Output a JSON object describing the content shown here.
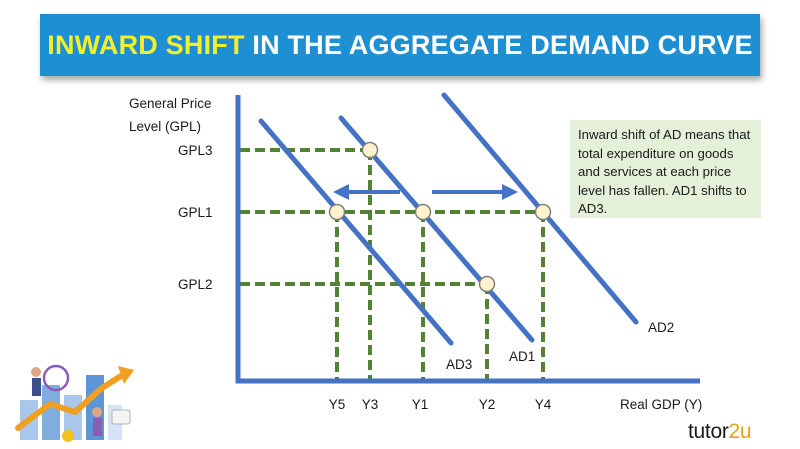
{
  "title": {
    "highlight": "INWARD SHIFT",
    "rest": " IN THE AGGREGATE DEMAND CURVE"
  },
  "y_axis_label_lines": [
    "General Price",
    "Level (GPL)"
  ],
  "x_axis_label": "Real GDP (Y)",
  "note": "Inward shift of AD means that total expenditure on goods and services at each price level has fallen. AD1 shifts to AD3.",
  "brand": {
    "main": "tutor",
    "accent": "2u"
  },
  "illustration": "business-growth-chart-people",
  "colors": {
    "title_bar": "#1e8fd2",
    "title_highlight": "#f3ef2a",
    "curves": "#4472c4",
    "dashed_guides": "#548235",
    "point_fill": "#fff2cc",
    "note_bg": "#e4f0d7",
    "brand_accent": "#e8a21a"
  },
  "chart_data": {
    "type": "diagram",
    "price_levels": [
      {
        "label": "GPL3",
        "rank": 3
      },
      {
        "label": "GPL1",
        "rank": 2
      },
      {
        "label": "GPL2",
        "rank": 1
      }
    ],
    "output_levels": [
      {
        "label": "Y5",
        "rank": 1
      },
      {
        "label": "Y3",
        "rank": 2
      },
      {
        "label": "Y1",
        "rank": 3
      },
      {
        "label": "Y2",
        "rank": 4
      },
      {
        "label": "Y4",
        "rank": 5
      }
    ],
    "curves": [
      "AD1",
      "AD2",
      "AD3"
    ],
    "points": [
      {
        "curve": "AD3",
        "price": "GPL1",
        "output": "Y5"
      },
      {
        "curve": "AD1",
        "price": "GPL3",
        "output": "Y3"
      },
      {
        "curve": "AD1",
        "price": "GPL1",
        "output": "Y1"
      },
      {
        "curve": "AD1",
        "price": "GPL2",
        "output": "Y2"
      },
      {
        "curve": "AD2",
        "price": "GPL1",
        "output": "Y4"
      }
    ],
    "arrows": [
      "AD1 to AD3 (left)",
      "AD1 to AD2 (right)"
    ]
  }
}
